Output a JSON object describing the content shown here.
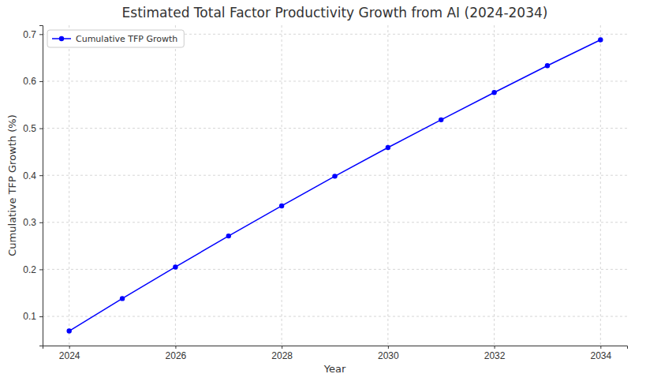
{
  "chart_data": {
    "type": "line",
    "title": "Estimated Total Factor Productivity Growth from AI (2024-2034)",
    "x_label": "Year",
    "y_label": "Cumulative TFP Growth (%)",
    "x": [
      2024,
      2025,
      2026,
      2027,
      2028,
      2029,
      2030,
      2031,
      2032,
      2033,
      2034
    ],
    "series": [
      {
        "name": "Cumulative TFP Growth",
        "color": "blue",
        "marker": "circle",
        "line_style": "solid",
        "values": [
          0.069,
          0.138,
          0.205,
          0.271,
          0.335,
          0.398,
          0.459,
          0.518,
          0.576,
          0.633,
          0.688
        ]
      }
    ],
    "xlim": [
      2023.5,
      2034.5
    ],
    "ylim": [
      0.038,
      0.719
    ],
    "xticks": [
      2024,
      2026,
      2028,
      2030,
      2032,
      2034
    ],
    "yticks": [
      0.1,
      0.2,
      0.3,
      0.4,
      0.5,
      0.6,
      0.7
    ],
    "grid": true,
    "legend": "upper left"
  }
}
